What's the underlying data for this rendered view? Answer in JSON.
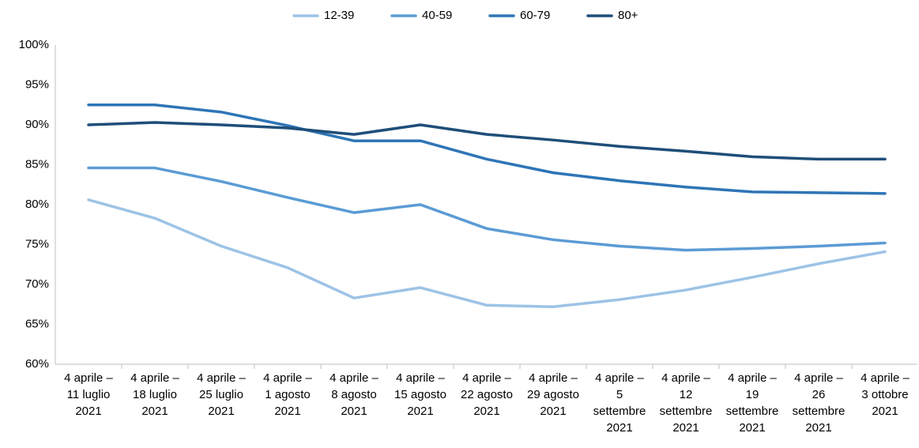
{
  "chart_data": {
    "type": "line",
    "categories": [
      "4 aprile – 11 luglio 2021",
      "4 aprile – 18 luglio 2021",
      "4 aprile – 25 luglio 2021",
      "4 aprile – 1 agosto 2021",
      "4 aprile – 8 agosto 2021",
      "4 aprile – 15 agosto 2021",
      "4 aprile – 22 agosto 2021",
      "4 aprile – 29 agosto 2021",
      "4 aprile – 5 settembre 2021",
      "4 aprile – 12 settembre 2021",
      "4 aprile – 19 settembre 2021",
      "4 aprile – 26 settembre 2021",
      "4 aprile – 3 ottobre 2021"
    ],
    "series": [
      {
        "name": "12-39",
        "color": "#9dc3e6",
        "values": [
          80.6,
          78.3,
          74.8,
          72.1,
          68.3,
          69.6,
          67.4,
          67.2,
          68.1,
          69.3,
          70.9,
          72.6,
          74.1
        ]
      },
      {
        "name": "40-59",
        "color": "#5b9bd5",
        "values": [
          84.6,
          84.6,
          82.9,
          80.9,
          79.0,
          80.0,
          77.0,
          75.6,
          74.8,
          74.3,
          74.5,
          74.8,
          75.2
        ]
      },
      {
        "name": "60-79",
        "color": "#2e75b6",
        "values": [
          92.5,
          92.5,
          91.6,
          89.9,
          88.0,
          88.0,
          85.7,
          84.0,
          83.0,
          82.2,
          81.6,
          81.5,
          81.4
        ]
      },
      {
        "name": "80+",
        "color": "#1f4e79",
        "values": [
          90.0,
          90.3,
          90.0,
          89.6,
          88.8,
          90.0,
          88.8,
          88.1,
          87.3,
          86.7,
          86.0,
          85.7,
          85.7
        ]
      }
    ],
    "ylim": [
      60,
      100
    ],
    "yticks": [
      {
        "value": 60,
        "label": "60%"
      },
      {
        "value": 65,
        "label": "65%"
      },
      {
        "value": 70,
        "label": "70%"
      },
      {
        "value": 75,
        "label": "75%"
      },
      {
        "value": 80,
        "label": "80%"
      },
      {
        "value": 85,
        "label": "85%"
      },
      {
        "value": 90,
        "label": "90%"
      },
      {
        "value": 95,
        "label": "95%"
      },
      {
        "value": 100,
        "label": "100%"
      }
    ],
    "grid": false,
    "legend": "top"
  }
}
